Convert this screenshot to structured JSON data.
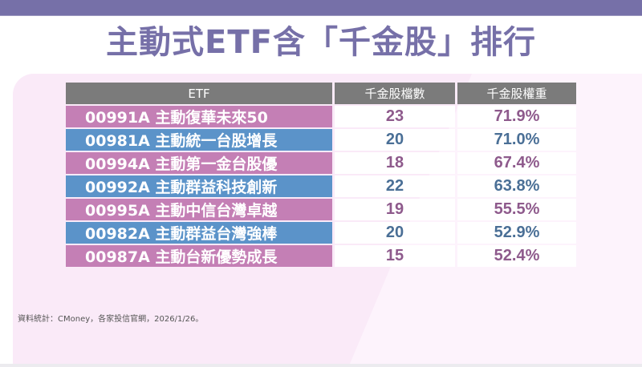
{
  "title": "主動式ETF含「千金股」排行",
  "table": {
    "headers": [
      "ETF",
      "千金股檔數",
      "千金股權重"
    ],
    "rows": [
      {
        "etf": "00991A 主動復華未來50",
        "count": "23",
        "weight": "71.9%",
        "style": "pink"
      },
      {
        "etf": "00981A 主動統一台股增長",
        "count": "20",
        "weight": "71.0%",
        "style": "blue"
      },
      {
        "etf": "00994A 主動第一金台股優",
        "count": "18",
        "weight": "67.4%",
        "style": "pink"
      },
      {
        "etf": "00992A 主動群益科技創新",
        "count": "22",
        "weight": "63.8%",
        "style": "blue"
      },
      {
        "etf": "00995A 主動中信台灣卓越",
        "count": "19",
        "weight": "55.5%",
        "style": "pink"
      },
      {
        "etf": "00982A 主動群益台灣強棒",
        "count": "20",
        "weight": "52.9%",
        "style": "blue"
      },
      {
        "etf": "00987A 主動台新優勢成長",
        "count": "15",
        "weight": "52.4%",
        "style": "pink"
      }
    ]
  },
  "source": "資料統計：CMoney，各家投信官網，2026/1/26。",
  "colors": {
    "accent": "#7670a8",
    "header_bg": "#7b7b7b",
    "pink_row": "#c47fb5",
    "blue_row": "#5b93c9",
    "pink_text": "#8e5a8c",
    "blue_text": "#4a6f96",
    "panel_bg": "#faeaf8"
  }
}
